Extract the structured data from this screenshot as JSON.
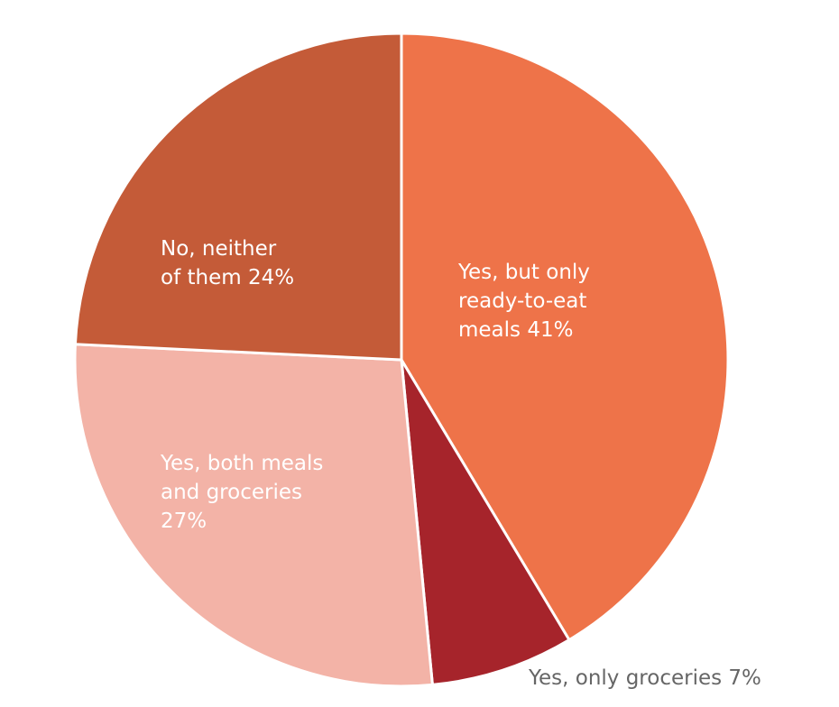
{
  "chart_data": {
    "type": "pie",
    "start_angle_deg": 0,
    "direction": "clockwise",
    "slices": [
      {
        "label_lines": [
          "Yes, but only",
          "ready-to-eat",
          "meals  41%"
        ],
        "value": 41,
        "color": "#EE7349",
        "label_inside": true
      },
      {
        "label_lines": [
          "Yes, only groceries 7%"
        ],
        "value": 7,
        "color": "#A6242B",
        "label_inside": false
      },
      {
        "label_lines": [
          "Yes, both meals",
          "and groceries",
          "27%"
        ],
        "value": 27,
        "color": "#F3B3A7",
        "label_inside": true
      },
      {
        "label_lines": [
          "No, neither",
          "of them  24%"
        ],
        "value": 24,
        "color": "#C45B38",
        "label_inside": true
      }
    ]
  }
}
